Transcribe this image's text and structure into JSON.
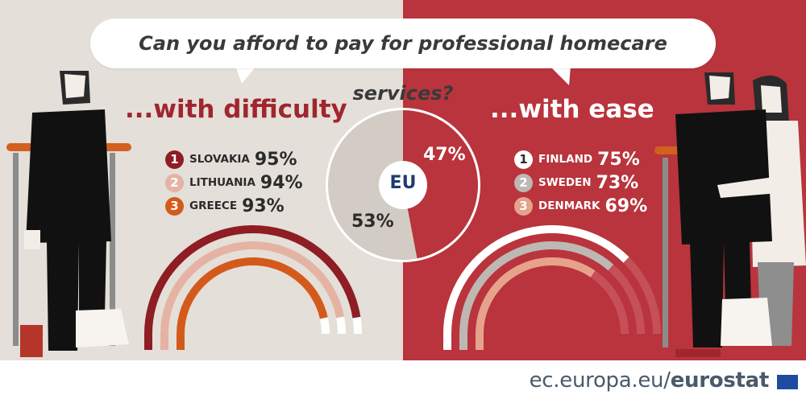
{
  "title": "Can you afford to pay for professional homecare services?",
  "left": {
    "heading": "...with difficulty",
    "ranks": [
      {
        "rank": "1",
        "country": "SLOVAKIA",
        "value": "95%"
      },
      {
        "rank": "2",
        "country": "LITHUANIA",
        "value": "94%"
      },
      {
        "rank": "3",
        "country": "GREECE",
        "value": "93%"
      }
    ]
  },
  "right": {
    "heading": "...with ease",
    "ranks": [
      {
        "rank": "1",
        "country": "FINLAND",
        "value": "75%"
      },
      {
        "rank": "2",
        "country": "SWEDEN",
        "value": "73%"
      },
      {
        "rank": "3",
        "country": "DENMARK",
        "value": "69%"
      }
    ]
  },
  "eu": {
    "label": "EU",
    "ease_label": "47%",
    "difficulty_label": "53%"
  },
  "footer": {
    "domain": "ec.europa.eu/",
    "brand": "eurostat"
  },
  "colors": {
    "left_bg": "#e4dfd8",
    "right_bg": "#b9343c",
    "rank1_left": "#8e1d24",
    "rank2_left": "#e5b3a3",
    "rank3_left": "#d45a1c",
    "rank1_right": "#ffffff",
    "rank2_right": "#bdb8b3",
    "rank3_right": "#e7a28c",
    "donut_ease": "#b9343c",
    "donut_difficulty": "#d2ccc4"
  },
  "chart_data": [
    {
      "type": "pie",
      "categories": [
        "with ease",
        "with difficulty"
      ],
      "values": [
        47,
        53
      ]
    },
    {
      "type": "bar",
      "categories": [
        "SLOVAKIA",
        "LITHUANIA",
        "GREECE"
      ],
      "values": [
        95,
        94,
        93
      ],
      "ylim": [
        0,
        100
      ]
    },
    {
      "type": "bar",
      "categories": [
        "FINLAND",
        "SWEDEN",
        "DENMARK"
      ],
      "values": [
        75,
        73,
        69
      ],
      "ylim": [
        0,
        100
      ]
    }
  ]
}
